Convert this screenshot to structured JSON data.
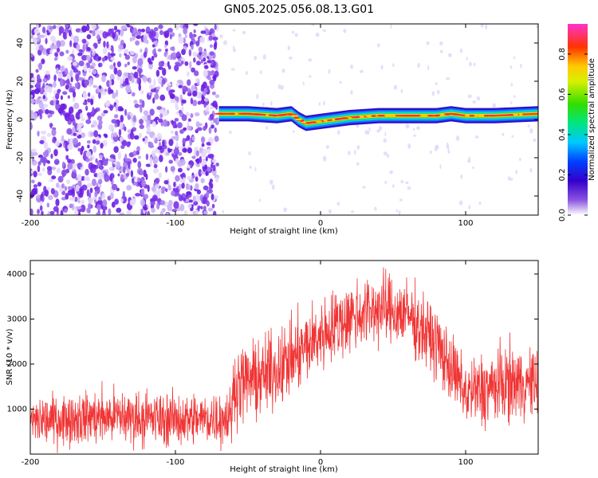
{
  "title": "GN05.2025.056.08.13.G01",
  "chart_data": [
    {
      "type": "heatmap",
      "xlabel": "Height of straight line (km)",
      "ylabel": "Frequency (Hz)",
      "xlim": [
        -200,
        150
      ],
      "ylim": [
        -50,
        50
      ],
      "xticks": [
        -200,
        -100,
        0,
        100
      ],
      "yticks": [
        -40,
        -20,
        0,
        20,
        40
      ],
      "colorbar": {
        "label": "Normalized spectral amplitude",
        "range": [
          0,
          0.95
        ],
        "ticks": [
          0.0,
          0.2,
          0.4,
          0.6,
          0.8
        ]
      },
      "noise_region_x": [
        -200,
        -71
      ],
      "ridge": {
        "description_points": [
          {
            "x": -70,
            "y": 3
          },
          {
            "x": -50,
            "y": 3
          },
          {
            "x": -30,
            "y": 2
          },
          {
            "x": -20,
            "y": 3
          },
          {
            "x": -15,
            "y": 0
          },
          {
            "x": -10,
            "y": -2
          },
          {
            "x": 0,
            "y": -1
          },
          {
            "x": 10,
            "y": 0
          },
          {
            "x": 20,
            "y": 1
          },
          {
            "x": 40,
            "y": 2
          },
          {
            "x": 60,
            "y": 2
          },
          {
            "x": 80,
            "y": 2
          },
          {
            "x": 90,
            "y": 3
          },
          {
            "x": 100,
            "y": 2
          },
          {
            "x": 120,
            "y": 2
          },
          {
            "x": 150,
            "y": 3
          }
        ]
      }
    },
    {
      "type": "line",
      "xlabel": "Height of straight line (km)",
      "ylabel": "SNR (10 * v/v)",
      "xlim": [
        -200,
        150
      ],
      "ylim": [
        0,
        4300
      ],
      "xticks": [
        -200,
        -100,
        0,
        100
      ],
      "yticks": [
        1000,
        2000,
        3000,
        4000
      ],
      "color": "#f03535",
      "envelope": {
        "x": [
          -200,
          -170,
          -140,
          -110,
          -80,
          -62,
          -59,
          -40,
          -20,
          0,
          20,
          40,
          60,
          80,
          100,
          110,
          130,
          150
        ],
        "low": [
          150,
          200,
          180,
          160,
          170,
          150,
          700,
          800,
          1200,
          1800,
          2200,
          2400,
          2300,
          1600,
          600,
          500,
          700,
          800
        ],
        "high": [
          1300,
          1400,
          1500,
          1400,
          1400,
          1500,
          2400,
          2600,
          3000,
          3500,
          3900,
          4100,
          3900,
          3300,
          2100,
          2300,
          2500,
          2300
        ]
      }
    }
  ]
}
